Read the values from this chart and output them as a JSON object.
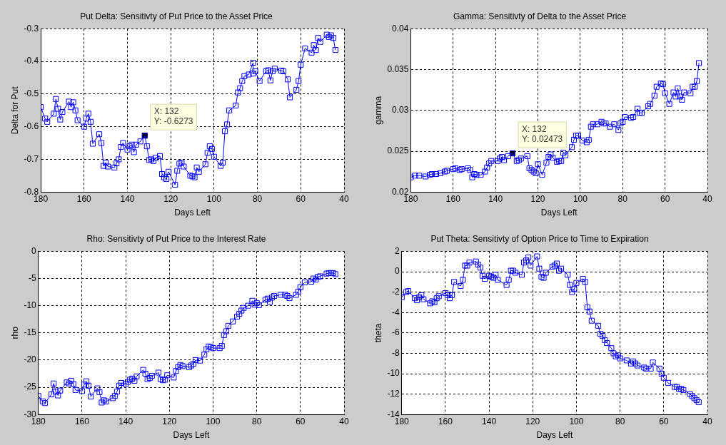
{
  "chart_data": [
    {
      "type": "line",
      "title": "Put Delta: Sensitivty of Put Price to the Asset Price",
      "xlabel": "Days Left",
      "ylabel": "Delta for Put",
      "xlim": [
        180,
        40
      ],
      "xticks": [
        180,
        160,
        140,
        120,
        100,
        80,
        60,
        40
      ],
      "ylim": [
        -0.8,
        -0.3
      ],
      "yticks": [
        -0.8,
        -0.7,
        -0.6,
        -0.5,
        -0.4,
        -0.3
      ],
      "grid": true,
      "legend": false,
      "marker": "square",
      "line_style": "solid",
      "annotations": [
        {
          "text": "X: 132\nY: -0.6273",
          "x": 132,
          "y": -0.6273
        }
      ],
      "series": [
        {
          "color": "#0000ff",
          "x": [
            180,
            178,
            177,
            174,
            173,
            172,
            171,
            170,
            167,
            166,
            165,
            164,
            163,
            160,
            159,
            158,
            157,
            156,
            153,
            152,
            151,
            150,
            149,
            146,
            145,
            144,
            143,
            142,
            140,
            139,
            138,
            137,
            136,
            134,
            132,
            131,
            130,
            129,
            128,
            127,
            125,
            124,
            123,
            122,
            121,
            118,
            117,
            116,
            115,
            114,
            111,
            110,
            109,
            108,
            107,
            104,
            103,
            102,
            101,
            100,
            97,
            96,
            95,
            94,
            93,
            90,
            89,
            88,
            87,
            86,
            84,
            82,
            82,
            81,
            79,
            76,
            75,
            74,
            73,
            72,
            69,
            68,
            66,
            65,
            62,
            61,
            60,
            58,
            55,
            54,
            53,
            52,
            51,
            48,
            47,
            46,
            45,
            44
          ],
          "values": [
            -0.54,
            -0.575,
            -0.585,
            -0.56,
            -0.515,
            -0.545,
            -0.578,
            -0.555,
            -0.523,
            -0.54,
            -0.525,
            -0.55,
            -0.58,
            -0.6,
            -0.575,
            -0.56,
            -0.585,
            -0.652,
            -0.623,
            -0.65,
            -0.72,
            -0.71,
            -0.722,
            -0.725,
            -0.712,
            -0.7,
            -0.662,
            -0.65,
            -0.67,
            -0.66,
            -0.655,
            -0.678,
            -0.655,
            -0.645,
            -0.6273,
            -0.66,
            -0.702,
            -0.7,
            -0.705,
            -0.695,
            -0.69,
            -0.745,
            -0.755,
            -0.76,
            -0.738,
            -0.778,
            -0.735,
            -0.713,
            -0.71,
            -0.722,
            -0.75,
            -0.752,
            -0.755,
            -0.725,
            -0.738,
            -0.715,
            -0.68,
            -0.66,
            -0.668,
            -0.692,
            -0.72,
            -0.71,
            -0.614,
            -0.593,
            -0.55,
            -0.535,
            -0.495,
            -0.482,
            -0.46,
            -0.445,
            -0.44,
            -0.404,
            -0.437,
            -0.43,
            -0.46,
            -0.43,
            -0.427,
            -0.458,
            -0.43,
            -0.422,
            -0.428,
            -0.43,
            -0.455,
            -0.51,
            -0.487,
            -0.46,
            -0.41,
            -0.36,
            -0.373,
            -0.35,
            -0.365,
            -0.328,
            -0.34,
            -0.318,
            -0.325,
            -0.32,
            -0.328,
            -0.365
          ]
        }
      ]
    },
    {
      "type": "line",
      "title": "Gamma: Sensitivty of Delta to the Asset Price",
      "xlabel": "Days Left",
      "ylabel": "gamma",
      "xlim": [
        180,
        40
      ],
      "xticks": [
        180,
        160,
        140,
        120,
        100,
        80,
        60,
        40
      ],
      "ylim": [
        0.02,
        0.04
      ],
      "yticks": [
        0.02,
        0.025,
        0.03,
        0.035,
        0.04
      ],
      "grid": true,
      "legend": false,
      "marker": "square",
      "line_style": "solid",
      "annotations": [
        {
          "text": "X: 132\nY: 0.02473",
          "x": 132,
          "y": 0.02473
        }
      ],
      "series": [
        {
          "color": "#0000ff",
          "x": [
            180,
            178,
            176,
            173,
            171,
            170,
            168,
            166,
            164,
            163,
            160,
            159,
            157,
            156,
            153,
            152,
            151,
            150,
            149,
            147,
            145,
            144,
            143,
            142,
            139,
            138,
            137,
            136,
            134,
            132,
            130,
            129,
            128,
            125,
            124,
            123,
            122,
            121,
            120,
            118,
            116,
            115,
            114,
            113,
            111,
            110,
            109,
            108,
            107,
            104,
            103,
            102,
            101,
            99,
            97,
            96,
            95,
            94,
            92,
            90,
            89,
            88,
            86,
            84,
            82,
            81,
            80,
            79,
            76,
            75,
            73,
            72,
            71,
            68,
            67,
            65,
            64,
            62,
            61,
            60,
            58,
            56,
            55,
            54,
            53,
            52,
            51,
            48,
            47,
            46,
            45,
            44
          ],
          "values": [
            0.0218,
            0.022,
            0.022,
            0.0219,
            0.0221,
            0.0222,
            0.0222,
            0.0223,
            0.0225,
            0.0226,
            0.0228,
            0.0229,
            0.0227,
            0.0228,
            0.0229,
            0.0227,
            0.0218,
            0.0222,
            0.0221,
            0.0221,
            0.0225,
            0.023,
            0.0235,
            0.0238,
            0.0238,
            0.0241,
            0.0243,
            0.0239,
            0.0244,
            0.02473,
            0.0238,
            0.0239,
            0.0241,
            0.0244,
            0.0229,
            0.0227,
            0.0225,
            0.0223,
            0.0234,
            0.0221,
            0.0236,
            0.0243,
            0.0246,
            0.0242,
            0.0237,
            0.0238,
            0.0238,
            0.0248,
            0.0245,
            0.0255,
            0.0264,
            0.0269,
            0.0269,
            0.0263,
            0.0261,
            0.0264,
            0.028,
            0.0283,
            0.0283,
            0.0286,
            0.0284,
            0.0284,
            0.028,
            0.0283,
            0.0276,
            0.0284,
            0.0286,
            0.0292,
            0.0291,
            0.0292,
            0.0302,
            0.0297,
            0.0297,
            0.0305,
            0.0308,
            0.0318,
            0.0329,
            0.0333,
            0.0332,
            0.0321,
            0.0308,
            0.0322,
            0.0317,
            0.0327,
            0.0317,
            0.0313,
            0.0322,
            0.0321,
            0.0329,
            0.0329,
            0.0336,
            0.0358
          ]
        }
      ]
    },
    {
      "type": "line",
      "title": "Rho: Sensitivty of Put Price to the Interest Rate",
      "xlabel": "Days Left",
      "ylabel": "rho",
      "xlim": [
        180,
        40
      ],
      "xticks": [
        180,
        160,
        140,
        120,
        100,
        80,
        60,
        40
      ],
      "ylim": [
        -30,
        0
      ],
      "yticks": [
        -30,
        -25,
        -20,
        -15,
        -10,
        -5,
        0
      ],
      "grid": true,
      "legend": false,
      "marker": "square",
      "line_style": "solid",
      "series": [
        {
          "color": "#0000ff",
          "x": [
            180,
            178,
            177,
            174,
            173,
            172,
            171,
            170,
            167,
            166,
            165,
            164,
            163,
            160,
            159,
            158,
            157,
            156,
            153,
            152,
            151,
            150,
            149,
            146,
            145,
            144,
            143,
            142,
            140,
            139,
            138,
            137,
            136,
            135,
            132,
            131,
            130,
            129,
            128,
            125,
            124,
            123,
            122,
            121,
            118,
            117,
            116,
            115,
            114,
            111,
            110,
            109,
            108,
            106,
            104,
            103,
            102,
            101,
            100,
            97,
            96,
            95,
            94,
            93,
            91,
            89,
            88,
            87,
            86,
            84,
            82,
            81,
            80,
            79,
            76,
            75,
            74,
            73,
            72,
            69,
            67,
            66,
            65,
            62,
            61,
            60,
            58,
            55,
            54,
            53,
            52,
            51,
            48,
            47,
            46,
            45,
            44
          ],
          "values": [
            -26.6,
            -27.6,
            -27.9,
            -26.3,
            -24.3,
            -25.8,
            -26.5,
            -25.6,
            -24.1,
            -24.3,
            -23.8,
            -24.4,
            -25.5,
            -25.7,
            -24.5,
            -23.9,
            -24.7,
            -26.7,
            -25.2,
            -25.9,
            -27.8,
            -27.4,
            -27.6,
            -27.0,
            -26.6,
            -25.8,
            -24.7,
            -24.2,
            -24.4,
            -24.0,
            -23.6,
            -23.4,
            -23.8,
            -23.0,
            -21.8,
            -22.5,
            -23.5,
            -23.3,
            -22.9,
            -22.3,
            -23.5,
            -23.7,
            -23.6,
            -22.8,
            -23.2,
            -22.0,
            -21.3,
            -20.9,
            -21.1,
            -21.3,
            -21.0,
            -20.7,
            -20.0,
            -20.1,
            -19.0,
            -18.0,
            -17.5,
            -17.6,
            -17.8,
            -17.8,
            -17.4,
            -15.4,
            -14.7,
            -13.7,
            -12.9,
            -12.0,
            -11.5,
            -10.9,
            -10.4,
            -10.0,
            -9.1,
            -9.8,
            -9.5,
            -9.9,
            -8.9,
            -8.7,
            -9.3,
            -8.5,
            -8.2,
            -8.0,
            -8.0,
            -8.2,
            -8.6,
            -8.0,
            -7.4,
            -6.6,
            -5.7,
            -5.6,
            -5.0,
            -5.2,
            -4.7,
            -4.6,
            -4.1,
            -4.0,
            -4.0,
            -4.0,
            -4.2
          ]
        }
      ]
    },
    {
      "type": "line",
      "title": "Put Theta: Sensitivty of Option Price to Time to Expiration",
      "xlabel": "Days Left",
      "ylabel": "theta",
      "xlim": [
        180,
        40
      ],
      "xticks": [
        180,
        160,
        140,
        120,
        100,
        80,
        60,
        40
      ],
      "ylim": [
        -14,
        2
      ],
      "yticks": [
        -14,
        -12,
        -10,
        -8,
        -6,
        -4,
        -2,
        0,
        2
      ],
      "grid": true,
      "legend": false,
      "marker": "square",
      "line_style": "solid",
      "series": [
        {
          "color": "#0000ff",
          "x": [
            180,
            178,
            177,
            174,
            173,
            172,
            171,
            170,
            167,
            166,
            165,
            164,
            163,
            160,
            159,
            158,
            157,
            156,
            153,
            152,
            151,
            150,
            149,
            146,
            145,
            144,
            143,
            142,
            140,
            139,
            138,
            137,
            136,
            132,
            131,
            130,
            129,
            128,
            125,
            124,
            123,
            122,
            121,
            118,
            117,
            116,
            115,
            114,
            111,
            110,
            109,
            108,
            107,
            104,
            103,
            102,
            101,
            100,
            97,
            96,
            95,
            94,
            93,
            90,
            89,
            88,
            87,
            86,
            84,
            83,
            82,
            81,
            80,
            77,
            75,
            74,
            73,
            72,
            69,
            68,
            66,
            65,
            62,
            61,
            60,
            58,
            55,
            54,
            53,
            52,
            51,
            48,
            47,
            46,
            45,
            44
          ],
          "values": [
            -2.5,
            -2.0,
            -1.9,
            -2.6,
            -2.8,
            -2.5,
            -2.3,
            -2.7,
            -3.1,
            -2.9,
            -3.0,
            -2.6,
            -2.4,
            -2.1,
            -2.3,
            -2.6,
            -2.3,
            -1.0,
            -1.4,
            -0.8,
            0.6,
            0.6,
            0.9,
            1.0,
            0.7,
            0.4,
            -0.4,
            -0.7,
            -0.4,
            -0.5,
            -0.6,
            -0.3,
            -0.8,
            -1.3,
            -0.8,
            0.1,
            0.1,
            -0.1,
            -0.3,
            0.9,
            1.1,
            1.4,
            0.6,
            1.5,
            0.3,
            -0.5,
            -0.6,
            -0.1,
            0.5,
            0.6,
            0.8,
            0.1,
            0.3,
            -0.3,
            -1.3,
            -2.0,
            -1.7,
            -1.1,
            -0.7,
            -1.0,
            -3.5,
            -3.9,
            -4.8,
            -5.3,
            -6.1,
            -6.3,
            -6.7,
            -7.0,
            -7.5,
            -8.0,
            -8.3,
            -8.2,
            -8.5,
            -8.7,
            -9.0,
            -8.8,
            -9.0,
            -9.2,
            -9.4,
            -9.5,
            -9.5,
            -8.9,
            -9.5,
            -10.0,
            -10.4,
            -10.9,
            -11.3,
            -11.3,
            -11.5,
            -11.5,
            -11.6,
            -12.0,
            -12.2,
            -12.4,
            -12.6,
            -12.8
          ]
        }
      ]
    }
  ]
}
